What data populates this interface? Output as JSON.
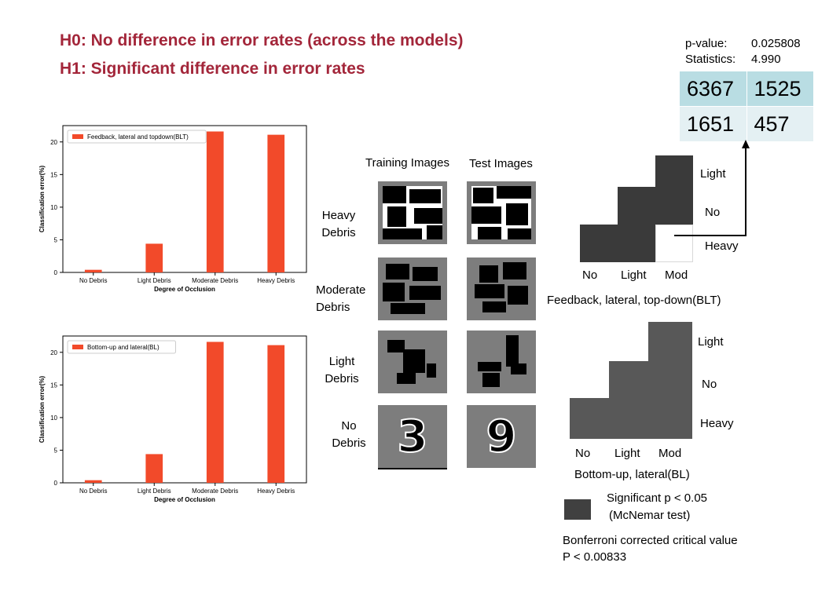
{
  "hypotheses": {
    "h0": "H0: No difference in error rates (across the models)",
    "h1": "H1: Significant difference in error rates"
  },
  "stats": {
    "pvalue_label": "p-value:",
    "pvalue": "0.025808",
    "statistic_label": "Statistics:",
    "statistic": "4.990",
    "table": [
      [
        "6367",
        "1525"
      ],
      [
        "1651",
        "457"
      ]
    ]
  },
  "chart_data": [
    {
      "type": "bar",
      "categories": [
        "No Debris",
        "Light Debris",
        "Moderate Debris",
        "Heavy Debris"
      ],
      "series": [
        {
          "name": "Feedback, lateral and topdown(BLT)",
          "values": [
            0.4,
            4.4,
            21.6,
            21.1
          ]
        }
      ],
      "xlabel": "Degree of Occlusion",
      "ylabel": "Classification error(%)",
      "yticks": [
        "0",
        "5",
        "10",
        "15",
        "20"
      ],
      "ylim": [
        0,
        22.5
      ],
      "color": "#f24a2a",
      "legend": "top-left"
    },
    {
      "type": "bar",
      "categories": [
        "No Debris",
        "Light Debris",
        "Moderate Debris",
        "Heavy Debris"
      ],
      "series": [
        {
          "name": "Bottom-up and lateral(BL)",
          "values": [
            0.4,
            4.4,
            21.6,
            21.1
          ]
        }
      ],
      "xlabel": "Degree of Occlusion",
      "ylabel": "Classification error(%)",
      "yticks": [
        "0",
        "5",
        "10",
        "15",
        "20"
      ],
      "ylim": [
        0,
        22.5
      ],
      "color": "#f24a2a",
      "legend": "top-left"
    }
  ],
  "images": {
    "training_header": "Training Images",
    "test_header": "Test Images",
    "rows": [
      {
        "label": "Heavy Debris"
      },
      {
        "label": "Moderate Debris"
      },
      {
        "label": "Light Debris"
      },
      {
        "label": "No Debris",
        "train_digit": "3",
        "test_digit": "9"
      }
    ]
  },
  "significance": {
    "blt": {
      "row_labels": [
        "Light",
        "No",
        "Heavy"
      ],
      "col_labels": [
        "No",
        "Light",
        "Mod"
      ],
      "title": "Feedback, lateral, top-down(BLT)",
      "color": "#3a3a3a"
    },
    "bl": {
      "row_labels": [
        "Light",
        "No",
        "Heavy"
      ],
      "col_labels": [
        "No",
        "Light",
        "Mod"
      ],
      "title": "Bottom-up, lateral(BL)",
      "color": "#585858"
    },
    "legend_line1": "Significant p < 0.05",
    "legend_line2": "(McNemar test)",
    "legend_color": "#404040",
    "bonferroni_line1": "Bonferroni corrected critical value",
    "bonferroni_line2": "P < 0.00833"
  }
}
